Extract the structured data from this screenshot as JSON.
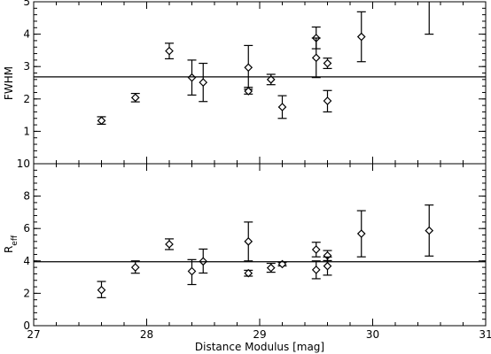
{
  "chart_data": {
    "type": "scatter",
    "shared_x": {
      "label": "Distance Modulus [mag]",
      "range": [
        27,
        31
      ],
      "ticks": [
        27,
        28,
        29,
        30,
        31
      ],
      "tick_labels": [
        "27",
        "28",
        "29",
        "30",
        "31"
      ]
    },
    "panels": [
      {
        "ylabel": "FWHM",
        "yrange": [
          0,
          5
        ],
        "yticks": [
          1,
          2,
          3,
          4,
          5
        ],
        "ytick_labels": [
          "1",
          "2",
          "3",
          "4",
          "5"
        ],
        "hline": 2.68,
        "points": [
          {
            "x": 27.6,
            "y": 1.33,
            "lo": 1.22,
            "hi": 1.45
          },
          {
            "x": 27.9,
            "y": 2.04,
            "lo": 1.91,
            "hi": 2.17
          },
          {
            "x": 28.2,
            "y": 3.48,
            "lo": 3.24,
            "hi": 3.72
          },
          {
            "x": 28.4,
            "y": 2.66,
            "lo": 2.12,
            "hi": 3.2
          },
          {
            "x": 28.5,
            "y": 2.51,
            "lo": 1.92,
            "hi": 3.1
          },
          {
            "x": 28.9,
            "y": 2.97,
            "lo": 2.3,
            "hi": 3.65
          },
          {
            "x": 28.9,
            "y": 2.24,
            "lo": 2.15,
            "hi": 2.36
          },
          {
            "x": 29.1,
            "y": 2.6,
            "lo": 2.44,
            "hi": 2.76
          },
          {
            "x": 29.2,
            "y": 1.75,
            "lo": 1.4,
            "hi": 2.1
          },
          {
            "x": 29.5,
            "y": 3.88,
            "lo": 3.55,
            "hi": 4.22
          },
          {
            "x": 29.5,
            "y": 3.27,
            "lo": 2.66,
            "hi": 3.88
          },
          {
            "x": 29.6,
            "y": 3.1,
            "lo": 2.94,
            "hi": 3.26
          },
          {
            "x": 29.6,
            "y": 1.94,
            "lo": 1.6,
            "hi": 2.26
          },
          {
            "x": 29.9,
            "y": 3.92,
            "lo": 3.15,
            "hi": 4.69
          },
          {
            "x": 30.5,
            "y": null,
            "lo": 4.0,
            "hi": 5.05
          }
        ]
      },
      {
        "ylabel": "R",
        "ylabel_sub": "eff",
        "yrange": [
          0,
          10
        ],
        "yticks": [
          0,
          2,
          4,
          6,
          8,
          10
        ],
        "ytick_labels": [
          "0",
          "2",
          "4",
          "6",
          "8",
          "10"
        ],
        "hline": 3.95,
        "points": [
          {
            "x": 27.6,
            "y": 2.2,
            "lo": 1.73,
            "hi": 2.73
          },
          {
            "x": 27.9,
            "y": 3.6,
            "lo": 3.24,
            "hi": 4.0
          },
          {
            "x": 28.2,
            "y": 5.03,
            "lo": 4.7,
            "hi": 5.36
          },
          {
            "x": 28.4,
            "y": 3.36,
            "lo": 2.54,
            "hi": 4.08
          },
          {
            "x": 28.5,
            "y": 3.97,
            "lo": 3.25,
            "hi": 4.73
          },
          {
            "x": 28.9,
            "y": 5.2,
            "lo": 4.0,
            "hi": 6.4
          },
          {
            "x": 28.9,
            "y": 3.24,
            "lo": 3.06,
            "hi": 3.42
          },
          {
            "x": 29.1,
            "y": 3.57,
            "lo": 3.3,
            "hi": 3.85
          },
          {
            "x": 29.2,
            "y": 3.8,
            "lo": 3.69,
            "hi": 3.91
          },
          {
            "x": 29.5,
            "y": 4.7,
            "lo": 4.25,
            "hi": 5.15
          },
          {
            "x": 29.5,
            "y": 3.45,
            "lo": 2.9,
            "hi": 4.0
          },
          {
            "x": 29.6,
            "y": 4.33,
            "lo": 4.02,
            "hi": 4.64
          },
          {
            "x": 29.6,
            "y": 3.68,
            "lo": 3.12,
            "hi": 4.24
          },
          {
            "x": 29.9,
            "y": 5.68,
            "lo": 4.25,
            "hi": 7.1
          },
          {
            "x": 30.5,
            "y": 5.87,
            "lo": 4.3,
            "hi": 7.45
          }
        ]
      }
    ]
  }
}
